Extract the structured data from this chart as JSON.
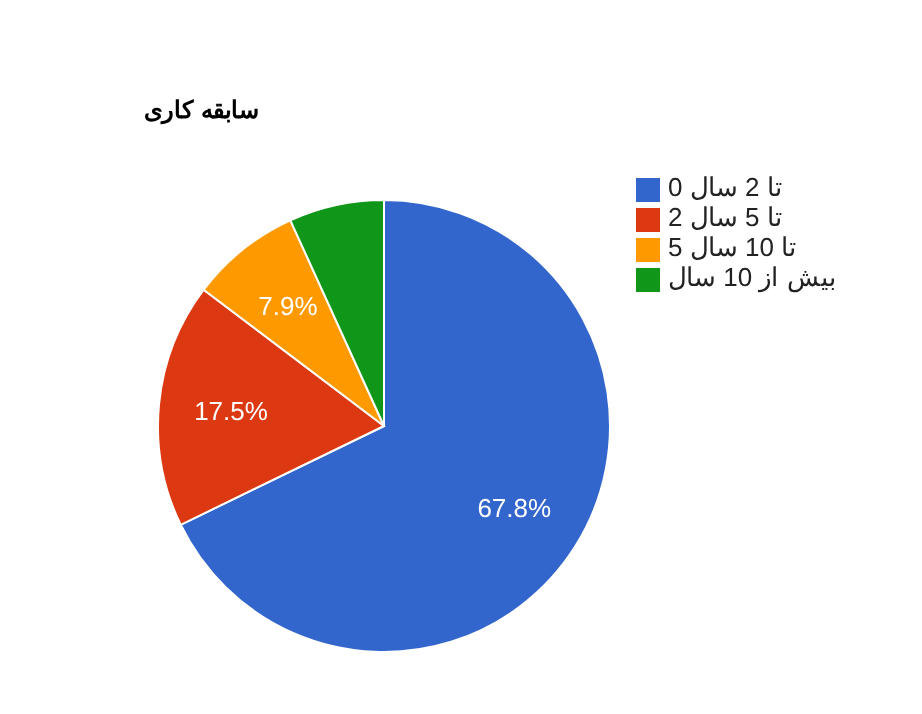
{
  "chart_data": {
    "type": "pie",
    "title": "سابقه کاری",
    "categories": [
      "0 تا 2 سال",
      "2 تا 5 سال",
      "5 تا 10 سال",
      "بیش از 10 سال"
    ],
    "values": [
      67.8,
      17.5,
      7.9,
      6.8
    ],
    "colors": [
      "#3366cc",
      "#dc3912",
      "#ff9900",
      "#109618"
    ],
    "value_labels": [
      "67.8%",
      "17.5%",
      "7.9%",
      null
    ],
    "legend": "top right"
  }
}
